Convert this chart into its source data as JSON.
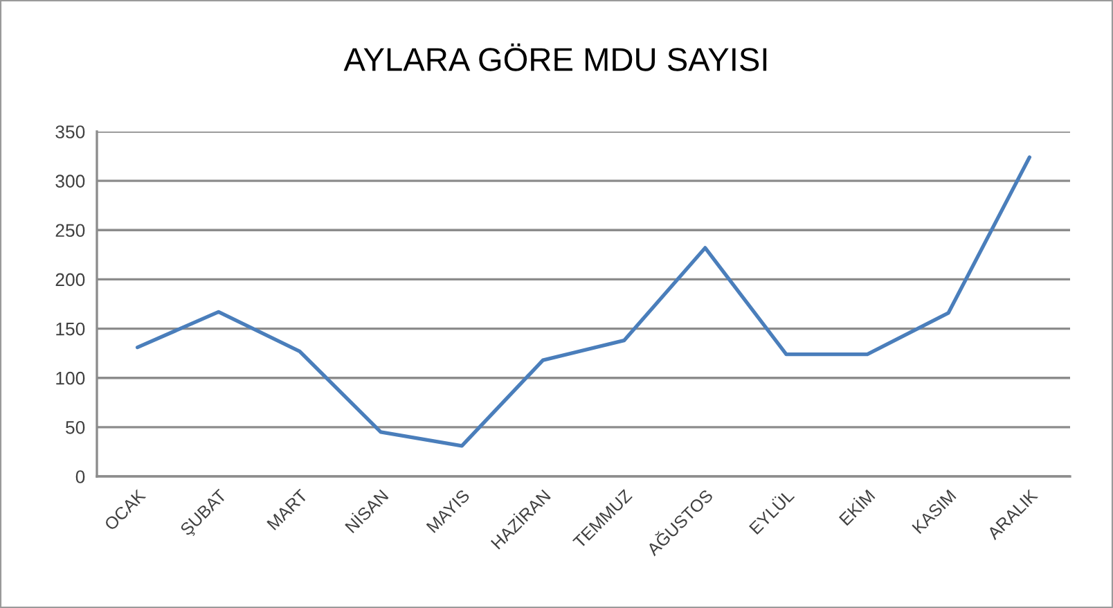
{
  "chart_data": {
    "type": "line",
    "title": "AYLARA GÖRE MDU SAYISI",
    "categories": [
      "OCAK",
      "ŞUBAT",
      "MART",
      "NİSAN",
      "MAYIS",
      "HAZİRAN",
      "TEMMUZ",
      "AĞUSTOS",
      "EYLÜL",
      "EKİM",
      "KASIM",
      "ARALIK"
    ],
    "series": [
      {
        "color": "#4a7ebb",
        "values": [
          131,
          167,
          127,
          45,
          31,
          118,
          138,
          232,
          124,
          124,
          166,
          324
        ]
      }
    ],
    "ylim": [
      0,
      350
    ],
    "yticks": [
      0,
      50,
      100,
      150,
      200,
      250,
      300,
      350
    ],
    "grid": "y",
    "marker": "none",
    "line_style": "solid"
  }
}
